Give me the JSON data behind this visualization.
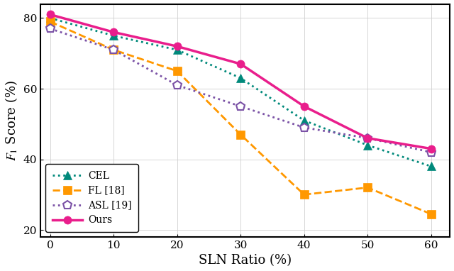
{
  "x": [
    0,
    10,
    20,
    30,
    40,
    50,
    60
  ],
  "CEL": [
    80.0,
    75.0,
    71.0,
    63.0,
    51.0,
    44.0,
    38.0
  ],
  "FL": [
    79.0,
    71.0,
    65.0,
    47.0,
    30.0,
    32.0,
    24.5
  ],
  "ASL": [
    77.0,
    71.0,
    61.0,
    55.0,
    49.0,
    46.0,
    42.0
  ],
  "Ours": [
    81.0,
    76.0,
    72.0,
    67.0,
    55.0,
    46.0,
    43.0
  ],
  "CEL_color": "#00897B",
  "FL_color": "#FF9800",
  "ASL_color": "#7B52A6",
  "Ours_color": "#E91E8C",
  "xlabel": "SLN Ratio (%)",
  "ylabel": "$F_1$ Score (%)",
  "ylim": [
    18,
    84
  ],
  "xlim": [
    -1.5,
    63
  ],
  "yticks": [
    20,
    40,
    60,
    80
  ],
  "xticks": [
    0,
    10,
    20,
    30,
    40,
    50,
    60
  ],
  "grid": true,
  "legend_labels": [
    "CEL",
    "FL [18]",
    "ASL [19]",
    "Ours"
  ],
  "background_color": "#ffffff"
}
